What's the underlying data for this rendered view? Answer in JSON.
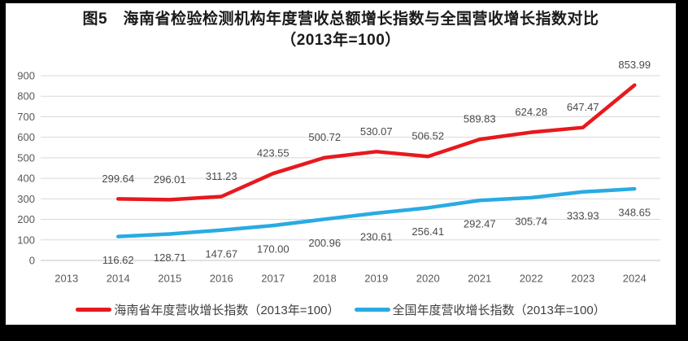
{
  "figure": {
    "title_line1": "图5　海南省检验检测机构年度营收总额增长指数与全国营收增长指数对比",
    "title_line2": "（2013年=100）"
  },
  "chart_data": {
    "type": "line",
    "title": "图5 海南省检验检测机构年度营收总额增长指数与全国营收增长指数对比（2013年=100）",
    "xlabel": "",
    "ylabel": "",
    "categories": [
      "2013",
      "2014",
      "2015",
      "2016",
      "2017",
      "2018",
      "2019",
      "2020",
      "2021",
      "2022",
      "2023",
      "2024"
    ],
    "ylim": [
      0,
      900
    ],
    "ytick_step": 100,
    "grid": true,
    "legend_position": "bottom",
    "colors": {
      "hainan_red": "#e7191d",
      "national_blue": "#29abe2",
      "gridline": "#d9d9d9",
      "axis_text": "#595959"
    },
    "series": [
      {
        "name": "海南省年度营收增长指数（2013年=100）",
        "color": "#e7191d",
        "label_position": "above",
        "values": [
          null,
          299.64,
          296.01,
          311.23,
          423.55,
          500.72,
          530.07,
          506.52,
          589.83,
          624.28,
          647.47,
          853.99
        ]
      },
      {
        "name": "全国年度营收增长指数（2013年=100）",
        "color": "#29abe2",
        "label_position": "below",
        "values": [
          null,
          116.62,
          128.71,
          147.67,
          170.0,
          200.96,
          230.61,
          256.41,
          292.47,
          305.74,
          333.93,
          348.65
        ]
      }
    ]
  }
}
